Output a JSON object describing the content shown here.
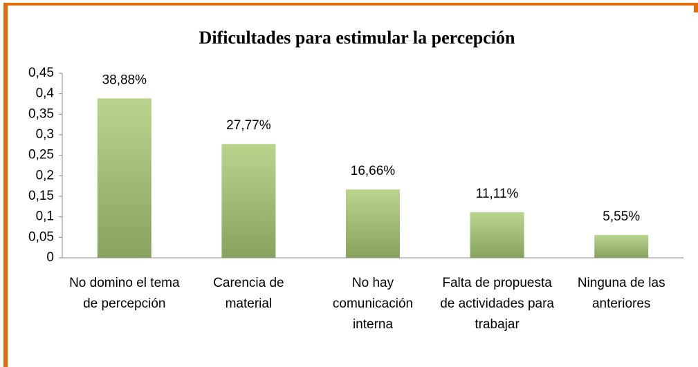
{
  "chart_data": {
    "type": "bar",
    "title": "Dificultades para estimular la percepción",
    "categories": [
      "No domino el tema de percepción",
      "Carencia de material",
      "No hay comunicación interna",
      "Falta de propuesta de actividades para trabajar",
      "Ninguna de las anteriores"
    ],
    "values": [
      0.3888,
      0.2777,
      0.1666,
      0.1111,
      0.0555
    ],
    "value_labels": [
      "38,88%",
      "27,77%",
      "16,66%",
      "11,11%",
      "5,55%"
    ],
    "color": "#9bb86f",
    "ylim": [
      0,
      0.45
    ],
    "yticks": [
      0,
      {
        "value": 0.05,
        "label": "0,05"
      },
      {
        "value": 0.1,
        "label": "0,1"
      },
      {
        "value": 0.15,
        "label": "0,15"
      },
      {
        "value": 0.2,
        "label": "0,2"
      },
      {
        "value": 0.25,
        "label": "0,25"
      },
      {
        "value": 0.3,
        "label": "0,3"
      },
      {
        "value": 0.35,
        "label": "0,35"
      },
      {
        "value": 0.4,
        "label": "0,4"
      },
      {
        "value": 0.45,
        "label": "0,45"
      }
    ],
    "grid": false
  }
}
